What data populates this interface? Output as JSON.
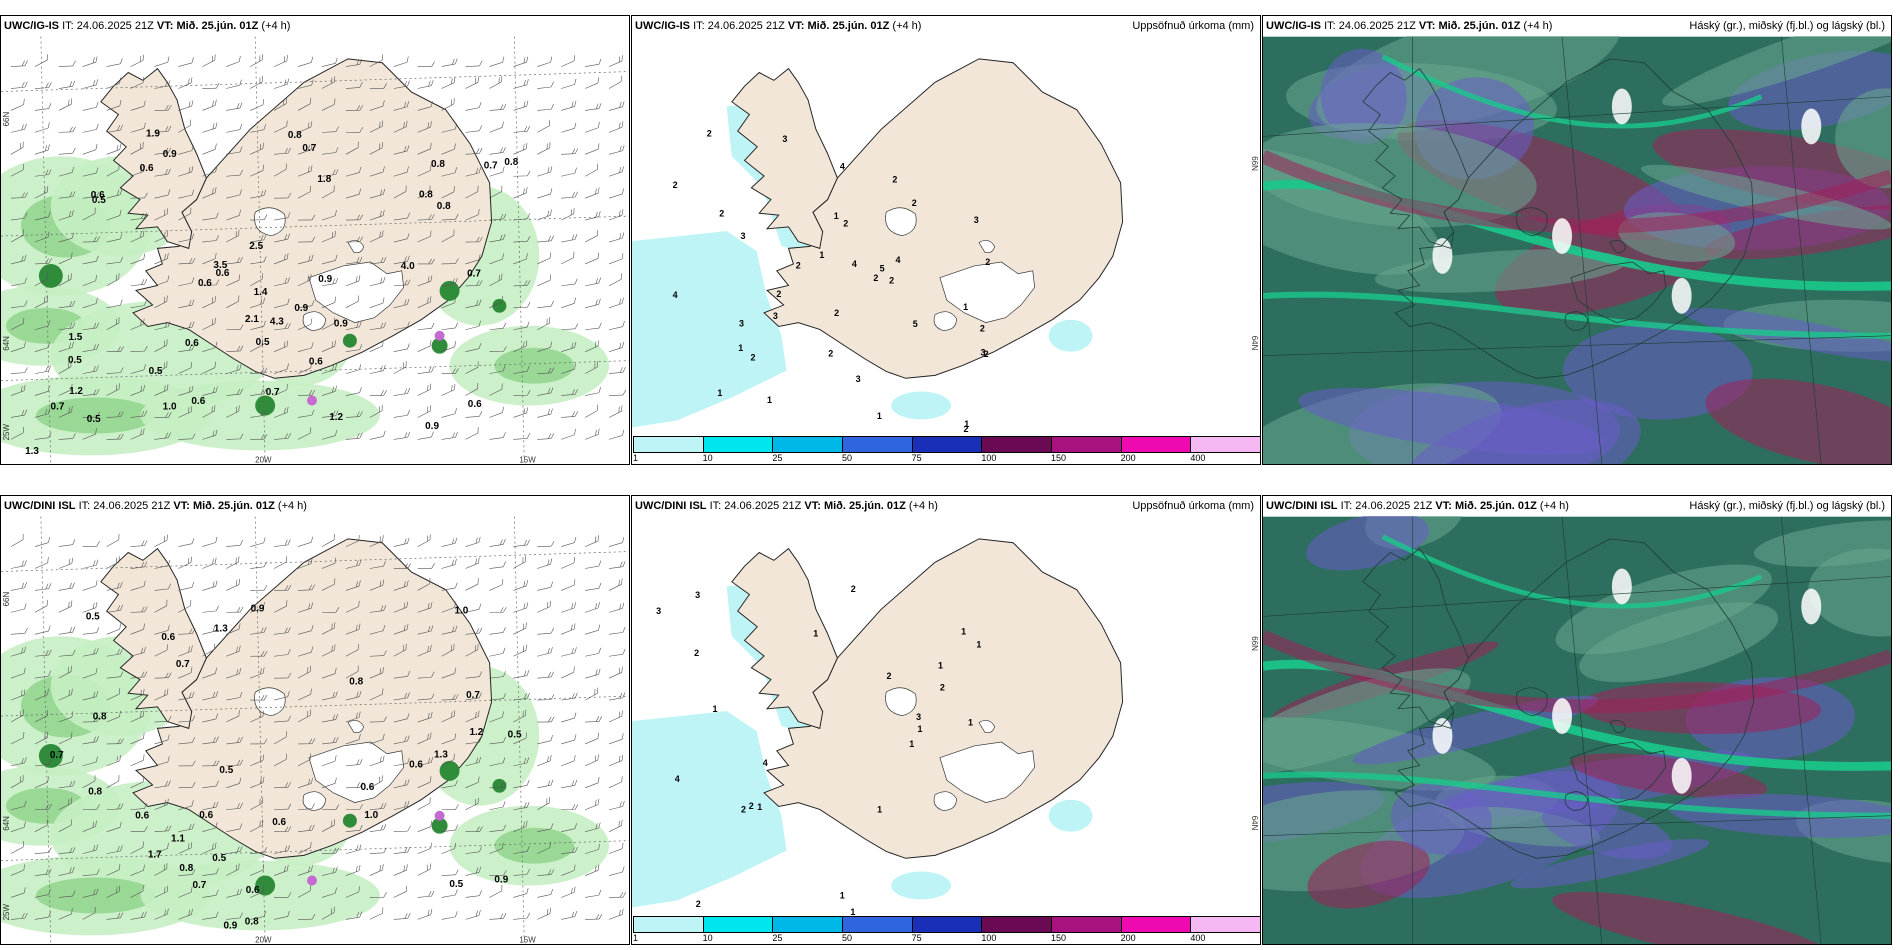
{
  "panels": [
    {
      "model": "UWC/IG-IS",
      "it_label": "IT:",
      "it_value": "24.06.2025 21Z",
      "vt_label": "VT:",
      "vt_value": "Mið. 25.jún. 01Z",
      "lead": "(+4 h)",
      "right_title": "",
      "lon_labels": [
        "20W",
        "15W"
      ],
      "lat_labels": [
        "66N",
        "64N",
        "25W"
      ],
      "numbers": [
        "0.6",
        "0.7",
        "0.6",
        "0.9",
        "0.5",
        "0.5",
        "0.9",
        "1.0",
        "0.6",
        "0.7",
        "0.8",
        "0.9",
        "0.6",
        "0.8",
        "0.6",
        "0.7",
        "0.5",
        "0.8",
        "0.8",
        "1.2",
        "1.5",
        "3.5",
        "4.0",
        "2.5",
        "2.1",
        "0.6",
        "0.5",
        "0.7",
        "0.6",
        "0.8",
        "0.9",
        "0.5",
        "0.7",
        "1.9",
        "0.6",
        "1.8",
        "4.3",
        "1.3",
        "1.4",
        "0.9",
        "1.2"
      ]
    },
    {
      "model": "UWC/IG-IS",
      "it_label": "IT:",
      "it_value": "24.06.2025 21Z",
      "vt_label": "VT:",
      "vt_value": "Mið. 25.jún. 01Z",
      "lead": "(+4 h)",
      "right_title": "Uppsöfnuð úrkoma (mm)",
      "lat_labels": [
        "66N",
        "64N"
      ],
      "numbers": [
        "1",
        "2",
        "2",
        "2",
        "1",
        "1",
        "2",
        "2",
        "2",
        "3",
        "5",
        "4",
        "5",
        "2",
        "3",
        "2",
        "3",
        "3",
        "2",
        "4",
        "3",
        "1",
        "2",
        "2",
        "3",
        "4",
        "2",
        "1",
        "2",
        "2",
        "2",
        "1",
        "2",
        "2",
        "3",
        "1",
        "1",
        "4"
      ],
      "colorbar": {
        "ticks": [
          "1",
          "10",
          "25",
          "50",
          "75",
          "100",
          "150",
          "200",
          "400"
        ],
        "colors": [
          "#bff4f7",
          "#00e6ee",
          "#00b8e8",
          "#2f66e0",
          "#1a2fb8",
          "#6a0a52",
          "#a8127e",
          "#ee0ab0",
          "#f5b8f2"
        ]
      }
    },
    {
      "model": "UWC/IG-IS",
      "it_label": "IT:",
      "it_value": "24.06.2025 21Z",
      "vt_label": "VT:",
      "vt_value": "Mið. 25.jún. 01Z",
      "lead": "(+4 h)",
      "right_title": "Háský (gr.), miðský (fj.bl.) og lágský (bl.)"
    },
    {
      "model": "UWC/DINI ISL",
      "it_label": "IT:",
      "it_value": "24.06.2025 21Z",
      "vt_label": "VT:",
      "vt_value": "Mið. 25.jún. 01Z",
      "lead": "(+4 h)",
      "right_title": "",
      "lon_labels": [
        "20W",
        "15W"
      ],
      "lat_labels": [
        "66N",
        "64N",
        "25W"
      ],
      "numbers": [
        "0.6",
        "0.6",
        "0.6",
        "0.5",
        "0.6",
        "0.7",
        "0.8",
        "0.5",
        "0.8",
        "0.6",
        "1.7",
        "0.5",
        "0.5",
        "0.8",
        "1.3",
        "1.0",
        "1.1",
        "1.2",
        "0.9",
        "0.8",
        "0.9",
        "0.6",
        "0.7",
        "0.6",
        "0.5",
        "0.8",
        "0.7",
        "1.3",
        "0.9",
        "1.0",
        "0.7"
      ]
    },
    {
      "model": "UWC/DINI ISL",
      "it_label": "IT:",
      "it_value": "24.06.2025 21Z",
      "vt_label": "VT:",
      "vt_value": "Mið. 25.jún. 01Z",
      "lead": "(+4 h)",
      "right_title": "Uppsöfnuð úrkoma (mm)",
      "lat_labels": [
        "66N",
        "64N"
      ],
      "numbers": [
        "1",
        "1",
        "2",
        "2",
        "1",
        "2",
        "3",
        "4",
        "2",
        "3",
        "3",
        "2",
        "1",
        "1",
        "1",
        "2",
        "1",
        "4",
        "2",
        "2",
        "1",
        "1",
        "4",
        "1",
        "1",
        "1"
      ],
      "colorbar": {
        "ticks": [
          "1",
          "10",
          "25",
          "50",
          "75",
          "100",
          "150",
          "200",
          "400"
        ],
        "colors": [
          "#bff4f7",
          "#00e6ee",
          "#00b8e8",
          "#2f66e0",
          "#1a2fb8",
          "#6a0a52",
          "#a8127e",
          "#ee0ab0",
          "#f5b8f2"
        ]
      }
    },
    {
      "model": "UWC/DINI ISL",
      "it_label": "IT:",
      "it_value": "24.06.2025 21Z",
      "vt_label": "VT:",
      "vt_value": "Mið. 25.jún. 01Z",
      "lead": "(+4 h)",
      "right_title": "Háský (gr.), miðský (fj.bl.) og lágský (bl.)"
    }
  ],
  "colors": {
    "land": "#f1e6d8",
    "glacier": "#ffffff",
    "precip_light": "#c6eec3",
    "precip_mid": "#8fd58c",
    "precip_dark": "#2f8c3a",
    "accum_light": "#bff4f7",
    "cloud_base": "#2e6e5e",
    "cloud_high": "#6aa88f",
    "cloud_mid": "#6a5cc8",
    "cloud_low": "#a0205a",
    "cloud_edge": "#19c98c"
  }
}
